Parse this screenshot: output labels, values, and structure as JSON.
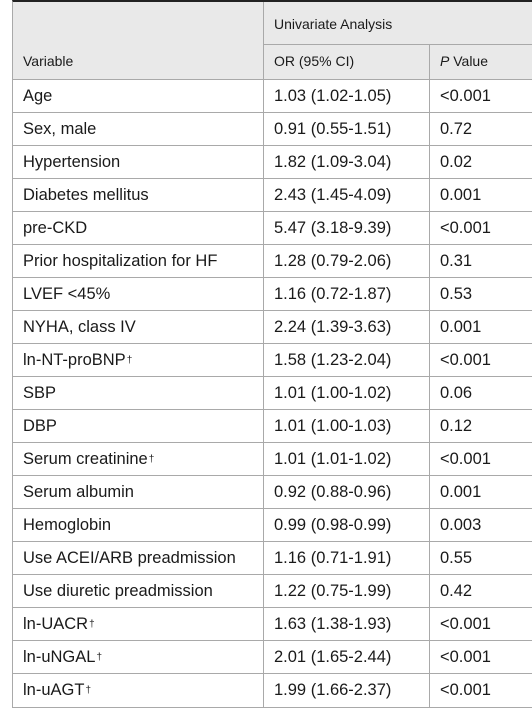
{
  "header": {
    "group_label": "Univariate Analysis",
    "variable_label": "Variable",
    "or_label": "OR (95% CI)",
    "p_label_italic": "P",
    "p_label_rest": " Value"
  },
  "rows": [
    {
      "variable": "Age",
      "sup": "",
      "or": "1.03 (1.02-1.05)",
      "p": "<0.001"
    },
    {
      "variable": "Sex, male",
      "sup": "",
      "or": "0.91 (0.55-1.51)",
      "p": "0.72"
    },
    {
      "variable": "Hypertension",
      "sup": "",
      "or": "1.82 (1.09-3.04)",
      "p": "0.02"
    },
    {
      "variable": "Diabetes mellitus",
      "sup": "",
      "or": "2.43 (1.45-4.09)",
      "p": "0.001"
    },
    {
      "variable": "pre-CKD",
      "sup": "",
      "or": "5.47 (3.18-9.39)",
      "p": "<0.001"
    },
    {
      "variable": "Prior hospitalization for HF",
      "sup": "",
      "or": "1.28 (0.79-2.06)",
      "p": "0.31"
    },
    {
      "variable": "LVEF <45%",
      "sup": "",
      "or": "1.16 (0.72-1.87)",
      "p": "0.53"
    },
    {
      "variable": "NYHA, class IV",
      "sup": "",
      "or": "2.24 (1.39-3.63)",
      "p": "0.001"
    },
    {
      "variable": "ln-NT-proBNP",
      "sup": "†",
      "or": "1.58 (1.23-2.04)",
      "p": "<0.001"
    },
    {
      "variable": "SBP",
      "sup": "",
      "or": "1.01 (1.00-1.02)",
      "p": "0.06"
    },
    {
      "variable": "DBP",
      "sup": "",
      "or": "1.01 (1.00-1.03)",
      "p": "0.12"
    },
    {
      "variable": "Serum creatinine",
      "sup": "†",
      "or": "1.01 (1.01-1.02)",
      "p": "<0.001"
    },
    {
      "variable": "Serum albumin",
      "sup": "",
      "or": "0.92 (0.88-0.96)",
      "p": "0.001"
    },
    {
      "variable": "Hemoglobin",
      "sup": "",
      "or": "0.99 (0.98-0.99)",
      "p": "0.003"
    },
    {
      "variable": "Use ACEI/ARB preadmission",
      "sup": "",
      "or": "1.16 (0.71-1.91)",
      "p": "0.55"
    },
    {
      "variable": "Use diuretic preadmission",
      "sup": "",
      "or": "1.22 (0.75-1.99)",
      "p": "0.42"
    },
    {
      "variable": "ln-UACR",
      "sup": "†",
      "or": "1.63 (1.38-1.93)",
      "p": "<0.001"
    },
    {
      "variable": "ln-uNGAL",
      "sup": "†",
      "or": "2.01 (1.65-2.44)",
      "p": "<0.001"
    },
    {
      "variable": "ln-uAGT",
      "sup": "†",
      "or": "1.99 (1.66-2.37)",
      "p": "<0.001"
    }
  ]
}
